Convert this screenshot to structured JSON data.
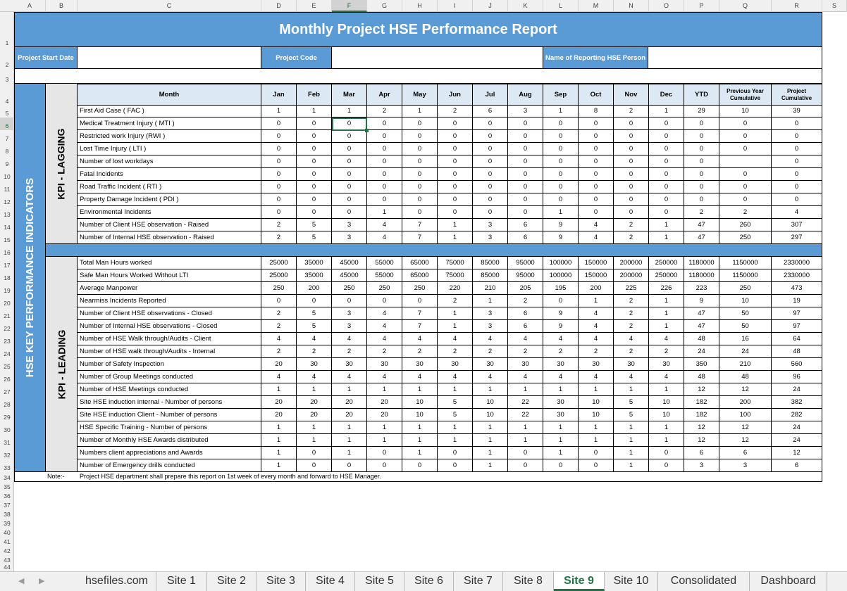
{
  "colors": {
    "blue_band": "#5b9bd5",
    "header_fill": "#dce9f5",
    "kpi_fill": "#e7e6e6",
    "accent": "#217346"
  },
  "columns": [
    "A",
    "B",
    "C",
    "D",
    "E",
    "F",
    "G",
    "H",
    "I",
    "J",
    "K",
    "L",
    "M",
    "N",
    "O",
    "P",
    "Q",
    "R",
    "S"
  ],
  "selected_column": "F",
  "selected_row": "6",
  "rows": [
    "1",
    "2",
    "3",
    "4",
    "5",
    "6",
    "7",
    "8",
    "9",
    "10",
    "11",
    "12",
    "13",
    "14",
    "15",
    "16",
    "17",
    "18",
    "19",
    "20",
    "21",
    "22",
    "23",
    "24",
    "25",
    "26",
    "27",
    "28",
    "29",
    "30",
    "31",
    "32",
    "33",
    "34",
    "35",
    "36",
    "37",
    "38",
    "39",
    "40",
    "41",
    "42",
    "43",
    "44"
  ],
  "report": {
    "title": "Monthly Project HSE Performance Report",
    "project_start_date_label": "Project Start Date",
    "project_code_label": "Project Code",
    "reporting_person_label": "Name of Reporting HSE Person",
    "side_title": "HSE KEY PERFORMANCE INDICATORS",
    "lagging_title": "KPI - LAGGING",
    "leading_title": "KPI - LEADING",
    "note_label": "Note:-",
    "note_text": "Project HSE department shall prepare this report on 1st week of every month and forward to HSE Manager."
  },
  "table_header": [
    "Month",
    "Jan",
    "Feb",
    "Mar",
    "Apr",
    "May",
    "Jun",
    "Jul",
    "Aug",
    "Sep",
    "Oct",
    "Nov",
    "Dec",
    "YTD",
    "Previous Year Cumulative",
    "Project Cumulative"
  ],
  "lagging_rows": [
    {
      "label": "First Aid Case ( FAC )",
      "values": [
        "1",
        "1",
        "1",
        "2",
        "1",
        "2",
        "6",
        "3",
        "1",
        "8",
        "2",
        "1",
        "29",
        "10",
        "39"
      ]
    },
    {
      "label": "Medical Treatment Injury ( MTI )",
      "values": [
        "0",
        "0",
        "0",
        "0",
        "0",
        "0",
        "0",
        "0",
        "0",
        "0",
        "0",
        "0",
        "0",
        "0",
        "0"
      ]
    },
    {
      "label": "Restricted work Injury (RWI )",
      "values": [
        "0",
        "0",
        "0",
        "0",
        "0",
        "0",
        "0",
        "0",
        "0",
        "0",
        "0",
        "0",
        "0",
        "0",
        "0"
      ]
    },
    {
      "label": "Lost Time Injury ( LTI )",
      "values": [
        "0",
        "0",
        "0",
        "0",
        "0",
        "0",
        "0",
        "0",
        "0",
        "0",
        "0",
        "0",
        "0",
        "0",
        "0"
      ]
    },
    {
      "label": "Number of lost workdays",
      "values": [
        "0",
        "0",
        "0",
        "0",
        "0",
        "0",
        "0",
        "0",
        "0",
        "0",
        "0",
        "0",
        "0",
        "",
        "0"
      ]
    },
    {
      "label": "Fatal Incidents",
      "values": [
        "0",
        "0",
        "0",
        "0",
        "0",
        "0",
        "0",
        "0",
        "0",
        "0",
        "0",
        "0",
        "0",
        "0",
        "0"
      ]
    },
    {
      "label": "Road Traffic Incident ( RTI )",
      "values": [
        "0",
        "0",
        "0",
        "0",
        "0",
        "0",
        "0",
        "0",
        "0",
        "0",
        "0",
        "0",
        "0",
        "0",
        "0"
      ]
    },
    {
      "label": "Property Damage Incident ( PDI )",
      "values": [
        "0",
        "0",
        "0",
        "0",
        "0",
        "0",
        "0",
        "0",
        "0",
        "0",
        "0",
        "0",
        "0",
        "0",
        "0"
      ]
    },
    {
      "label": "Environmental Incidents",
      "values": [
        "0",
        "0",
        "0",
        "1",
        "0",
        "0",
        "0",
        "0",
        "1",
        "0",
        "0",
        "0",
        "2",
        "2",
        "4"
      ]
    },
    {
      "label": "Number of Client HSE observation - Raised",
      "values": [
        "2",
        "5",
        "3",
        "4",
        "7",
        "1",
        "3",
        "6",
        "9",
        "4",
        "2",
        "1",
        "47",
        "260",
        "307"
      ]
    },
    {
      "label": "Number of Internal HSE observation - Raised",
      "values": [
        "2",
        "5",
        "3",
        "4",
        "7",
        "1",
        "3",
        "6",
        "9",
        "4",
        "2",
        "1",
        "47",
        "250",
        "297"
      ]
    }
  ],
  "leading_rows": [
    {
      "label": "Total Man Hours worked",
      "values": [
        "25000",
        "35000",
        "45000",
        "55000",
        "65000",
        "75000",
        "85000",
        "95000",
        "100000",
        "150000",
        "200000",
        "250000",
        "1180000",
        "1150000",
        "2330000"
      ]
    },
    {
      "label": "Safe Man Hours Worked Without LTI",
      "values": [
        "25000",
        "35000",
        "45000",
        "55000",
        "65000",
        "75000",
        "85000",
        "95000",
        "100000",
        "150000",
        "200000",
        "250000",
        "1180000",
        "1150000",
        "2330000"
      ]
    },
    {
      "label": "Average Manpower",
      "values": [
        "250",
        "200",
        "250",
        "250",
        "250",
        "220",
        "210",
        "205",
        "195",
        "200",
        "225",
        "226",
        "223",
        "250",
        "473"
      ]
    },
    {
      "label": "Nearmiss Incidents Reported",
      "values": [
        "0",
        "0",
        "0",
        "0",
        "0",
        "2",
        "1",
        "2",
        "0",
        "1",
        "2",
        "1",
        "9",
        "10",
        "19"
      ]
    },
    {
      "label": "Number of Client HSE observations - Closed",
      "values": [
        "2",
        "5",
        "3",
        "4",
        "7",
        "1",
        "3",
        "6",
        "9",
        "4",
        "2",
        "1",
        "47",
        "50",
        "97"
      ]
    },
    {
      "label": "Number of Internal HSE observations - Closed",
      "values": [
        "2",
        "5",
        "3",
        "4",
        "7",
        "1",
        "3",
        "6",
        "9",
        "4",
        "2",
        "1",
        "47",
        "50",
        "97"
      ]
    },
    {
      "label": "Number of HSE Walk through/Audits - Client",
      "values": [
        "4",
        "4",
        "4",
        "4",
        "4",
        "4",
        "4",
        "4",
        "4",
        "4",
        "4",
        "4",
        "48",
        "16",
        "64"
      ]
    },
    {
      "label": "Number of HSE walk through/Audits - Internal",
      "values": [
        "2",
        "2",
        "2",
        "2",
        "2",
        "2",
        "2",
        "2",
        "2",
        "2",
        "2",
        "2",
        "24",
        "24",
        "48"
      ]
    },
    {
      "label": "Number of Safety Inspection",
      "values": [
        "20",
        "30",
        "30",
        "30",
        "30",
        "30",
        "30",
        "30",
        "30",
        "30",
        "30",
        "30",
        "350",
        "210",
        "560"
      ]
    },
    {
      "label": "Number of Group Meetings conducted",
      "values": [
        "4",
        "4",
        "4",
        "4",
        "4",
        "4",
        "4",
        "4",
        "4",
        "4",
        "4",
        "4",
        "48",
        "48",
        "96"
      ]
    },
    {
      "label": "Number of HSE Meetings conducted",
      "values": [
        "1",
        "1",
        "1",
        "1",
        "1",
        "1",
        "1",
        "1",
        "1",
        "1",
        "1",
        "1",
        "12",
        "12",
        "24"
      ]
    },
    {
      "label": "Site HSE induction internal - Number of persons",
      "values": [
        "20",
        "20",
        "20",
        "20",
        "10",
        "5",
        "10",
        "22",
        "30",
        "10",
        "5",
        "10",
        "182",
        "200",
        "382"
      ]
    },
    {
      "label": "Site HSE induction Client - Number of persons",
      "values": [
        "20",
        "20",
        "20",
        "20",
        "10",
        "5",
        "10",
        "22",
        "30",
        "10",
        "5",
        "10",
        "182",
        "100",
        "282"
      ]
    },
    {
      "label": "HSE Specific Training - Number of persons",
      "values": [
        "1",
        "1",
        "1",
        "1",
        "1",
        "1",
        "1",
        "1",
        "1",
        "1",
        "1",
        "1",
        "12",
        "12",
        "24"
      ]
    },
    {
      "label": "Number of Monthly HSE Awards distributed",
      "values": [
        "1",
        "1",
        "1",
        "1",
        "1",
        "1",
        "1",
        "1",
        "1",
        "1",
        "1",
        "1",
        "12",
        "12",
        "24"
      ]
    },
    {
      "label": "Numbers client appreciations and Awards",
      "values": [
        "1",
        "0",
        "1",
        "0",
        "1",
        "0",
        "1",
        "0",
        "1",
        "0",
        "1",
        "0",
        "6",
        "6",
        "12"
      ]
    },
    {
      "label": "Number of Emergency drills conducted",
      "values": [
        "1",
        "0",
        "0",
        "0",
        "0",
        "0",
        "1",
        "0",
        "0",
        "0",
        "1",
        "0",
        "3",
        "3",
        "6"
      ]
    }
  ],
  "sheet_tabs": [
    "hsefiles.com",
    "Site 1",
    "Site 2",
    "Site 3",
    "Site 4",
    "Site 5",
    "Site 6",
    "Site 7",
    "Site 8",
    "Site 9",
    "Site 10",
    "Consolidated",
    "Dashboard"
  ],
  "active_tab": "Site 9"
}
